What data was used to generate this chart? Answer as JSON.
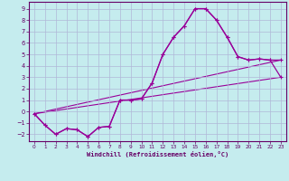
{
  "xlabel": "Windchill (Refroidissement éolien,°C)",
  "ylabel": "",
  "background_color": "#c5ecee",
  "line_color": "#990099",
  "xlim": [
    -0.5,
    23.5
  ],
  "ylim": [
    -2.6,
    9.6
  ],
  "xticks": [
    0,
    1,
    2,
    3,
    4,
    5,
    6,
    7,
    8,
    9,
    10,
    11,
    12,
    13,
    14,
    15,
    16,
    17,
    18,
    19,
    20,
    21,
    22,
    23
  ],
  "yticks": [
    -2,
    -1,
    0,
    1,
    2,
    3,
    4,
    5,
    6,
    7,
    8,
    9
  ],
  "line1_x": [
    0,
    1,
    2,
    3,
    4,
    5,
    6,
    7,
    8,
    9,
    10,
    11,
    12,
    13,
    14,
    15,
    16,
    17,
    18,
    19,
    20,
    21,
    22,
    23
  ],
  "line1_y": [
    -0.2,
    -1.2,
    -2.0,
    -1.5,
    -1.6,
    -2.2,
    -1.4,
    -1.3,
    1.0,
    1.0,
    1.1,
    2.5,
    5.0,
    6.5,
    7.5,
    9.0,
    9.0,
    8.0,
    6.5,
    4.8,
    4.5,
    4.6,
    4.5,
    4.5
  ],
  "line2_x": [
    0,
    1,
    2,
    3,
    4,
    5,
    6,
    7,
    8,
    9,
    10,
    11,
    12,
    13,
    14,
    15,
    16,
    17,
    18,
    19,
    20,
    21,
    22,
    23
  ],
  "line2_y": [
    -0.2,
    -1.2,
    -2.0,
    -1.5,
    -1.6,
    -2.2,
    -1.4,
    -1.3,
    1.0,
    1.0,
    1.1,
    2.5,
    5.0,
    6.5,
    7.5,
    9.0,
    9.0,
    8.0,
    6.5,
    4.8,
    4.5,
    4.6,
    4.5,
    3.0
  ],
  "line3_x": [
    0,
    23
  ],
  "line3_y": [
    -0.2,
    3.0
  ],
  "line4_x": [
    0,
    23
  ],
  "line4_y": [
    -0.2,
    4.5
  ],
  "grid_color": "#b0b8d8",
  "label_color": "#660066",
  "tick_color": "#660066",
  "spine_color": "#660066"
}
